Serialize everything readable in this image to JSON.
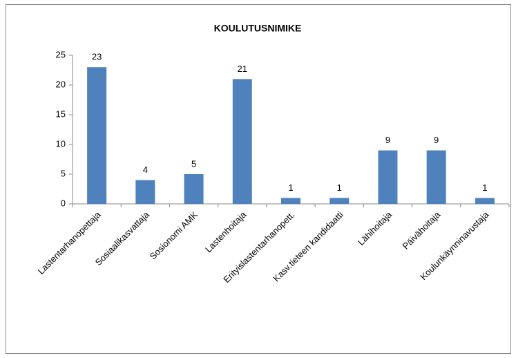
{
  "chart_data": {
    "type": "bar",
    "title": "KOULUTUSNIMIKE",
    "categories": [
      "Lastentarhanopettaja",
      "Sosiaalikasvattaja",
      "Sosionomi AMK",
      "Lastenhoitaja",
      "Erityislastentarhanopett.",
      "Kasv.tieteen kandidaatti",
      "Lähihoitaja",
      "Päivähoitaja",
      "Koulunkäynninavustaja"
    ],
    "values": [
      23,
      4,
      5,
      21,
      1,
      1,
      9,
      9,
      1
    ],
    "color": "#4f81bd",
    "ylim": [
      0,
      25
    ],
    "yticks": [
      0,
      5,
      10,
      15,
      20,
      25
    ],
    "grid": false
  }
}
